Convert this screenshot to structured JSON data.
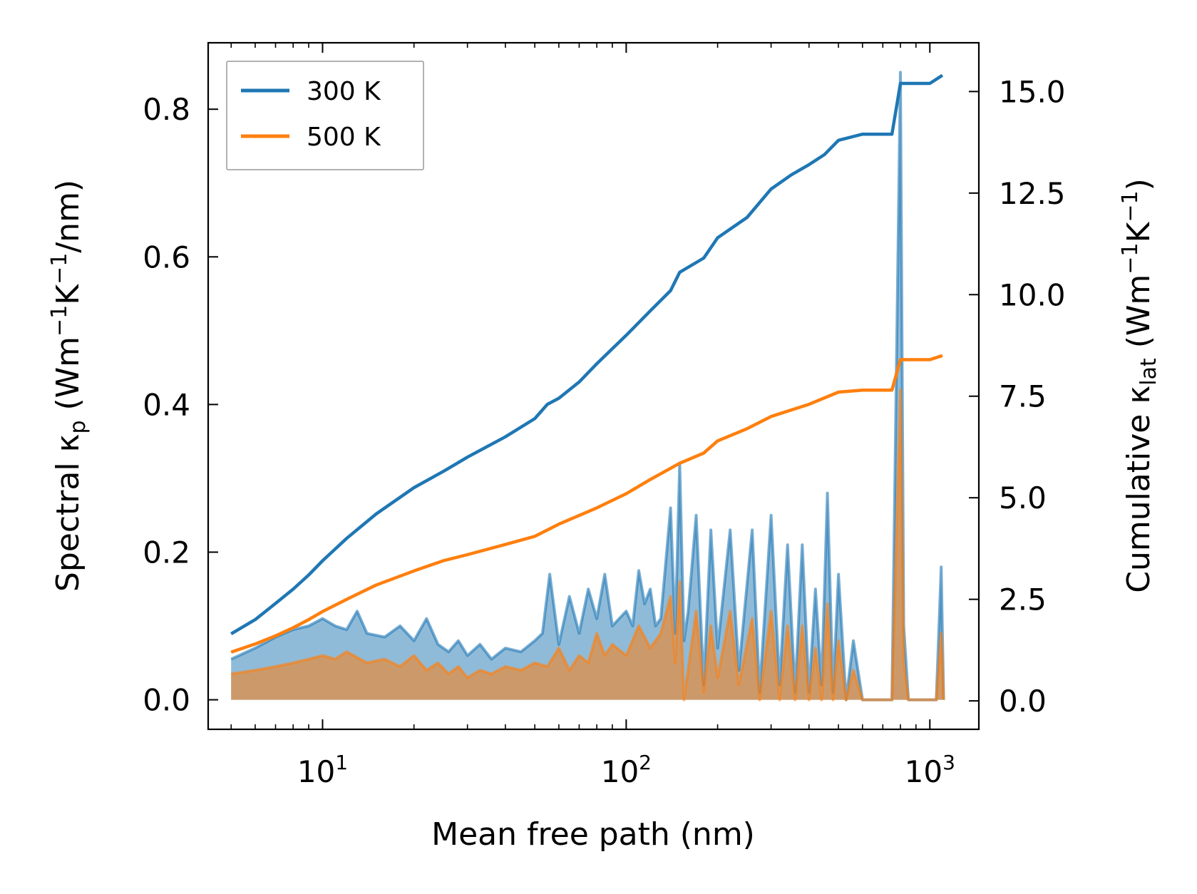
{
  "chart_data": {
    "type": "line",
    "xscale": "log",
    "xlabel": "Mean free path (nm)",
    "ylabel_left": "Spectral κp (Wm−1K−1/nm)",
    "ylabel_right": "Cumulative κlat (Wm−1K−1)",
    "xlim": [
      4.2,
      1450
    ],
    "ylim_left": [
      -0.04,
      0.89
    ],
    "ylim_right": [
      -0.7,
      16.2
    ],
    "x_ticks": [
      {
        "value": 10,
        "base": "10",
        "exp": "1"
      },
      {
        "value": 100,
        "base": "10",
        "exp": "2"
      },
      {
        "value": 1000,
        "base": "10",
        "exp": "3"
      }
    ],
    "y_left_ticks": [
      {
        "value": 0.0,
        "label": "0.0"
      },
      {
        "value": 0.2,
        "label": "0.2"
      },
      {
        "value": 0.4,
        "label": "0.4"
      },
      {
        "value": 0.6,
        "label": "0.6"
      },
      {
        "value": 0.8,
        "label": "0.8"
      }
    ],
    "y_right_ticks": [
      {
        "value": 0.0,
        "label": "0.0"
      },
      {
        "value": 2.5,
        "label": "2.5"
      },
      {
        "value": 5.0,
        "label": "5.0"
      },
      {
        "value": 7.5,
        "label": "7.5"
      },
      {
        "value": 10.0,
        "label": "10.0"
      },
      {
        "value": 12.5,
        "label": "12.5"
      },
      {
        "value": 15.0,
        "label": "15.0"
      }
    ],
    "legend": {
      "position": "top-left",
      "entries": [
        {
          "label": "300 K",
          "color": "#1f77b4"
        },
        {
          "label": "500 K",
          "color": "#ff7f0e"
        }
      ]
    },
    "series": [
      {
        "name": "300 K",
        "color": "#1f77b4",
        "cumulative_axis": "right",
        "cumulative": [
          [
            5,
            1.65
          ],
          [
            6,
            2.0
          ],
          [
            7,
            2.4
          ],
          [
            8,
            2.75
          ],
          [
            9,
            3.1
          ],
          [
            10,
            3.45
          ],
          [
            12,
            4.0
          ],
          [
            15,
            4.6
          ],
          [
            20,
            5.25
          ],
          [
            25,
            5.65
          ],
          [
            30,
            6.0
          ],
          [
            40,
            6.5
          ],
          [
            50,
            6.95
          ],
          [
            55,
            7.3
          ],
          [
            60,
            7.45
          ],
          [
            70,
            7.85
          ],
          [
            80,
            8.3
          ],
          [
            100,
            9.0
          ],
          [
            120,
            9.6
          ],
          [
            140,
            10.1
          ],
          [
            150,
            10.55
          ],
          [
            180,
            10.9
          ],
          [
            200,
            11.4
          ],
          [
            250,
            11.9
          ],
          [
            300,
            12.6
          ],
          [
            350,
            12.95
          ],
          [
            400,
            13.2
          ],
          [
            450,
            13.45
          ],
          [
            500,
            13.8
          ],
          [
            600,
            13.95
          ],
          [
            750,
            13.95
          ],
          [
            800,
            15.2
          ],
          [
            1000,
            15.2
          ],
          [
            1100,
            15.4
          ]
        ],
        "spectral_axis": "left",
        "spectral": [
          [
            5,
            0.055
          ],
          [
            6,
            0.07
          ],
          [
            7,
            0.085
          ],
          [
            8,
            0.095
          ],
          [
            9,
            0.1
          ],
          [
            10,
            0.11
          ],
          [
            11,
            0.1
          ],
          [
            12,
            0.095
          ],
          [
            13,
            0.12
          ],
          [
            14,
            0.09
          ],
          [
            16,
            0.085
          ],
          [
            18,
            0.1
          ],
          [
            20,
            0.08
          ],
          [
            22,
            0.11
          ],
          [
            24,
            0.075
          ],
          [
            26,
            0.065
          ],
          [
            28,
            0.08
          ],
          [
            30,
            0.06
          ],
          [
            33,
            0.075
          ],
          [
            36,
            0.055
          ],
          [
            40,
            0.07
          ],
          [
            45,
            0.065
          ],
          [
            50,
            0.08
          ],
          [
            53,
            0.09
          ],
          [
            56,
            0.17
          ],
          [
            60,
            0.075
          ],
          [
            65,
            0.14
          ],
          [
            70,
            0.09
          ],
          [
            75,
            0.15
          ],
          [
            80,
            0.11
          ],
          [
            85,
            0.17
          ],
          [
            90,
            0.1
          ],
          [
            100,
            0.12
          ],
          [
            105,
            0.1
          ],
          [
            110,
            0.175
          ],
          [
            115,
            0.13
          ],
          [
            120,
            0.15
          ],
          [
            125,
            0.1
          ],
          [
            130,
            0.11
          ],
          [
            140,
            0.26
          ],
          [
            145,
            0.09
          ],
          [
            150,
            0.32
          ],
          [
            155,
            0.08
          ],
          [
            160,
            0.12
          ],
          [
            170,
            0.25
          ],
          [
            180,
            0.02
          ],
          [
            190,
            0.23
          ],
          [
            200,
            0.07
          ],
          [
            220,
            0.23
          ],
          [
            235,
            0.04
          ],
          [
            260,
            0.23
          ],
          [
            275,
            0.01
          ],
          [
            300,
            0.25
          ],
          [
            320,
            0.02
          ],
          [
            340,
            0.21
          ],
          [
            360,
            0.01
          ],
          [
            380,
            0.21
          ],
          [
            400,
            0.01
          ],
          [
            420,
            0.15
          ],
          [
            440,
            0.02
          ],
          [
            460,
            0.28
          ],
          [
            480,
            0.01
          ],
          [
            500,
            0.17
          ],
          [
            530,
            0.0
          ],
          [
            560,
            0.08
          ],
          [
            600,
            0.0
          ],
          [
            750,
            0.0
          ],
          [
            800,
            0.85
          ],
          [
            820,
            0.1
          ],
          [
            850,
            0.0
          ],
          [
            1050,
            0.0
          ],
          [
            1090,
            0.18
          ],
          [
            1110,
            0.0
          ]
        ]
      },
      {
        "name": "500 K",
        "color": "#ff7f0e",
        "cumulative_axis": "right",
        "cumulative": [
          [
            5,
            1.2
          ],
          [
            6,
            1.4
          ],
          [
            7,
            1.6
          ],
          [
            8,
            1.8
          ],
          [
            9,
            2.0
          ],
          [
            10,
            2.2
          ],
          [
            12,
            2.5
          ],
          [
            15,
            2.85
          ],
          [
            20,
            3.2
          ],
          [
            25,
            3.45
          ],
          [
            30,
            3.6
          ],
          [
            40,
            3.85
          ],
          [
            50,
            4.05
          ],
          [
            60,
            4.35
          ],
          [
            80,
            4.75
          ],
          [
            100,
            5.1
          ],
          [
            120,
            5.45
          ],
          [
            150,
            5.85
          ],
          [
            180,
            6.1
          ],
          [
            200,
            6.4
          ],
          [
            250,
            6.7
          ],
          [
            300,
            7.0
          ],
          [
            400,
            7.3
          ],
          [
            500,
            7.6
          ],
          [
            600,
            7.65
          ],
          [
            750,
            7.65
          ],
          [
            800,
            8.4
          ],
          [
            1000,
            8.4
          ],
          [
            1100,
            8.5
          ]
        ],
        "spectral_axis": "left",
        "spectral": [
          [
            5,
            0.035
          ],
          [
            6,
            0.04
          ],
          [
            7,
            0.045
          ],
          [
            8,
            0.05
          ],
          [
            9,
            0.055
          ],
          [
            10,
            0.06
          ],
          [
            11,
            0.055
          ],
          [
            12,
            0.065
          ],
          [
            14,
            0.05
          ],
          [
            16,
            0.055
          ],
          [
            18,
            0.045
          ],
          [
            20,
            0.06
          ],
          [
            22,
            0.04
          ],
          [
            24,
            0.05
          ],
          [
            26,
            0.035
          ],
          [
            28,
            0.045
          ],
          [
            30,
            0.03
          ],
          [
            33,
            0.04
          ],
          [
            36,
            0.035
          ],
          [
            40,
            0.045
          ],
          [
            45,
            0.04
          ],
          [
            50,
            0.05
          ],
          [
            55,
            0.045
          ],
          [
            60,
            0.07
          ],
          [
            65,
            0.04
          ],
          [
            70,
            0.06
          ],
          [
            75,
            0.05
          ],
          [
            80,
            0.09
          ],
          [
            85,
            0.06
          ],
          [
            90,
            0.075
          ],
          [
            100,
            0.06
          ],
          [
            110,
            0.1
          ],
          [
            120,
            0.07
          ],
          [
            130,
            0.09
          ],
          [
            140,
            0.14
          ],
          [
            145,
            0.05
          ],
          [
            150,
            0.16
          ],
          [
            155,
            0.0
          ],
          [
            170,
            0.12
          ],
          [
            180,
            0.01
          ],
          [
            190,
            0.1
          ],
          [
            200,
            0.03
          ],
          [
            220,
            0.12
          ],
          [
            235,
            0.02
          ],
          [
            260,
            0.11
          ],
          [
            275,
            0.0
          ],
          [
            300,
            0.12
          ],
          [
            320,
            0.0
          ],
          [
            340,
            0.1
          ],
          [
            360,
            0.0
          ],
          [
            380,
            0.1
          ],
          [
            400,
            0.0
          ],
          [
            420,
            0.07
          ],
          [
            440,
            0.0
          ],
          [
            460,
            0.13
          ],
          [
            480,
            0.0
          ],
          [
            500,
            0.08
          ],
          [
            530,
            0.0
          ],
          [
            560,
            0.04
          ],
          [
            600,
            0.0
          ],
          [
            750,
            0.0
          ],
          [
            800,
            0.42
          ],
          [
            820,
            0.05
          ],
          [
            850,
            0.0
          ],
          [
            1050,
            0.0
          ],
          [
            1090,
            0.09
          ],
          [
            1110,
            0.0
          ]
        ]
      }
    ]
  }
}
